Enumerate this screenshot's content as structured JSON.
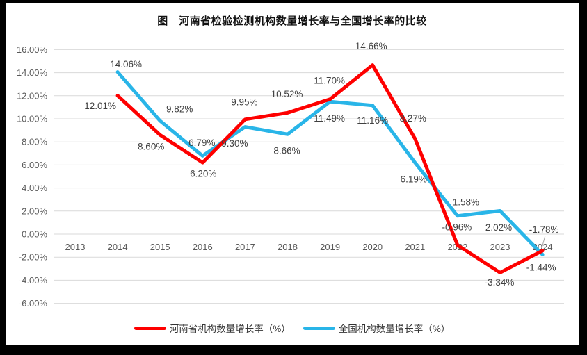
{
  "title": "图　河南省检验检测机构数量增长率与全国增长率的比较",
  "chart_data": {
    "type": "line",
    "categories": [
      "2013",
      "2014",
      "2015",
      "2016",
      "2017",
      "2018",
      "2019",
      "2020",
      "2021",
      "2022",
      "2023",
      "2024"
    ],
    "series": [
      {
        "name": "河南省机构数量增长率（%）",
        "color": "#FE0000",
        "values": [
          null,
          12.01,
          8.6,
          6.2,
          9.95,
          10.52,
          11.7,
          14.66,
          8.27,
          -0.96,
          -3.34,
          -1.44
        ]
      },
      {
        "name": "全国机构数量增长率（%）",
        "color": "#29B5E8",
        "values": [
          null,
          14.06,
          9.82,
          6.79,
          9.3,
          8.66,
          11.49,
          11.16,
          6.19,
          1.58,
          2.02,
          -1.78
        ]
      }
    ],
    "xlabel": "",
    "ylabel": "",
    "ylim": [
      -6,
      16
    ],
    "ytick_step": 2,
    "ytick_labels": [
      "16.00%",
      "14.00%",
      "12.00%",
      "10.00%",
      "8.00%",
      "6.00%",
      "4.00%",
      "2.00%",
      "0.00%",
      "-2.00%",
      "-4.00%",
      "-6.00%"
    ],
    "grid": true,
    "gridline_color": "#D9D9D9",
    "axis_text_color": "#595959",
    "data_label_color": "#404040",
    "legend_position": "bottom",
    "data_labels": true
  }
}
